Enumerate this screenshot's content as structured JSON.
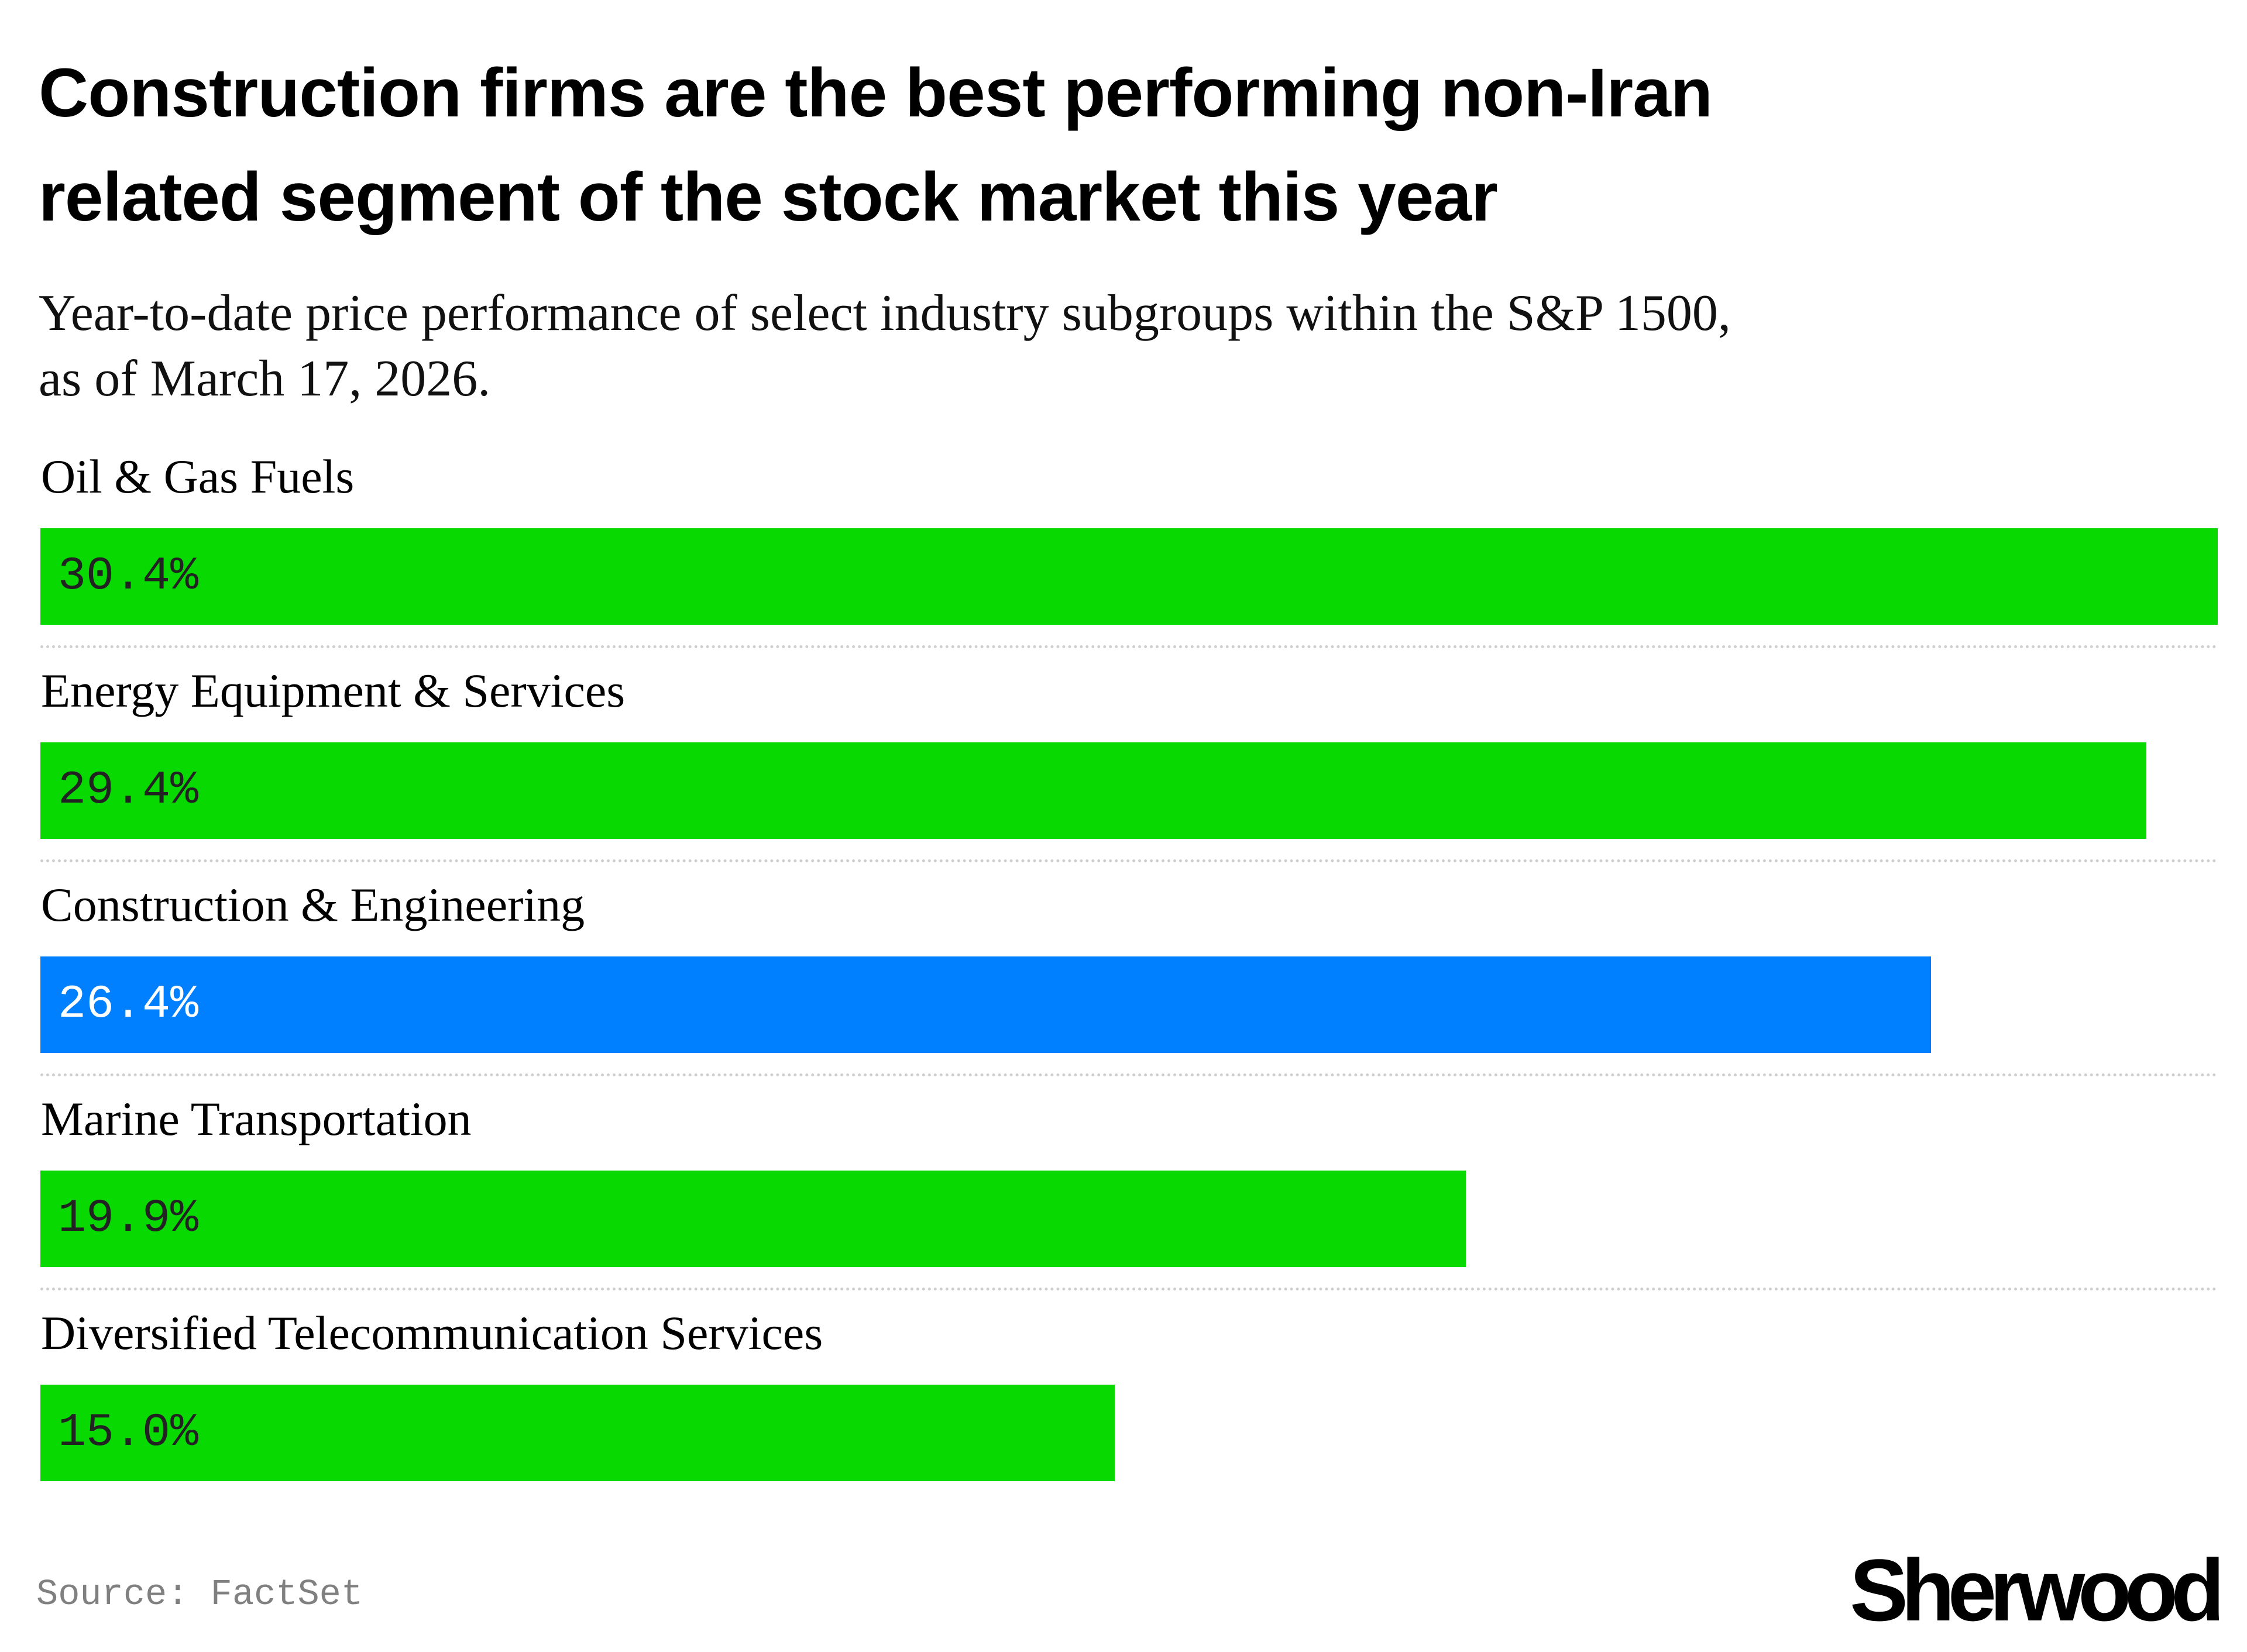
{
  "header": {
    "title_line1": "Construction firms are the best performing non-Iran",
    "title_line2": "related segment of the stock market this year",
    "subtitle_line1": "Year-to-date price performance of select industry subgroups within the S&P 1500,",
    "subtitle_line2": "as of March 17, 2026."
  },
  "footer": {
    "source": "Source: FactSet",
    "logo": "Sherwood"
  },
  "colors": {
    "default_bar": "#08d900",
    "highlight_bar": "#0080ff",
    "default_text": "#222222",
    "highlight_text": "#ffffff"
  },
  "chart_data": {
    "type": "bar",
    "orientation": "horizontal",
    "title": "Construction firms are the best performing non-Iran related segment of the stock market this year",
    "subtitle": "Year-to-date price performance of select industry subgroups within the S&P 1500, as of March 17, 2026.",
    "xlabel": "",
    "ylabel": "",
    "unit": "%",
    "categories": [
      "Oil & Gas Fuels",
      "Energy Equipment & Services",
      "Construction & Engineering",
      "Marine Transportation",
      "Diversified Telecommunication Services"
    ],
    "values": [
      30.4,
      29.4,
      26.4,
      19.9,
      15.0
    ],
    "value_labels": [
      "30.4%",
      "29.4%",
      "26.4%",
      "19.9%",
      "15.0%"
    ],
    "highlighted": [
      false,
      false,
      true,
      false,
      false
    ],
    "xlim": [
      0,
      30.4
    ],
    "grid": false,
    "legend": "none",
    "source": "Source: FactSet"
  }
}
